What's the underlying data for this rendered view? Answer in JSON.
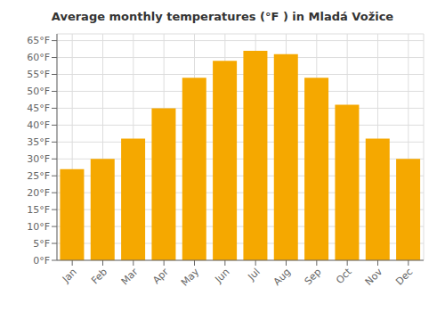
{
  "chart_data": {
    "type": "bar",
    "title": "Average monthly temperatures (°F ) in Mladá Vožice",
    "categories": [
      "Jan",
      "Feb",
      "Mar",
      "Apr",
      "May",
      "Jun",
      "Jul",
      "Aug",
      "Sep",
      "Oct",
      "Nov",
      "Dec"
    ],
    "values": [
      27,
      30,
      36,
      45,
      54,
      59,
      62,
      61,
      54,
      46,
      36,
      30
    ],
    "color": "#F5A800",
    "ylim": [
      0,
      67
    ],
    "yticks": [
      {
        "value": 0,
        "label": "0°F"
      },
      {
        "value": 5,
        "label": "5°F"
      },
      {
        "value": 10,
        "label": "10°F"
      },
      {
        "value": 15,
        "label": "15°F"
      },
      {
        "value": 20,
        "label": "20°F"
      },
      {
        "value": 25,
        "label": "25°F"
      },
      {
        "value": 30,
        "label": "30°F"
      },
      {
        "value": 35,
        "label": "35°F"
      },
      {
        "value": 40,
        "label": "40°F"
      },
      {
        "value": 45,
        "label": "45°F"
      },
      {
        "value": 50,
        "label": "50°F"
      },
      {
        "value": 55,
        "label": "55°F"
      },
      {
        "value": 60,
        "label": "60°F"
      },
      {
        "value": 65,
        "label": "65°F"
      }
    ],
    "grid": true
  }
}
